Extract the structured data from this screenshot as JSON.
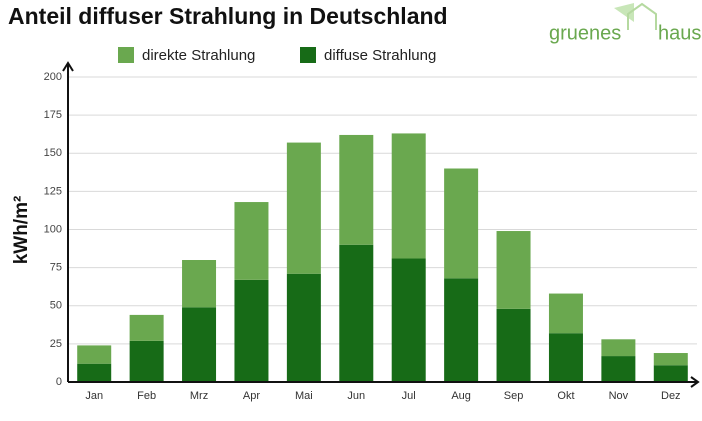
{
  "chart_data": {
    "type": "stacked_bar",
    "title": "Anteil diffuser Strahlung in Deutschland",
    "y_label": "kWh/m²",
    "categories": [
      "Jan",
      "Feb",
      "Mrz",
      "Apr",
      "Mai",
      "Jun",
      "Jul",
      "Aug",
      "Sep",
      "Okt",
      "Nov",
      "Dez"
    ],
    "series": [
      {
        "name": "direkte Strahlung",
        "color": "#6aa84f",
        "values": [
          12,
          17,
          31,
          51,
          86,
          72,
          82,
          72,
          51,
          26,
          11,
          8
        ]
      },
      {
        "name": "diffuse Strahlung",
        "color": "#176b17",
        "values": [
          12,
          27,
          49,
          67,
          71,
          90,
          81,
          68,
          48,
          32,
          17,
          11
        ]
      }
    ],
    "stack_from_bottom": [
      1,
      0
    ],
    "ylim": [
      0,
      200
    ],
    "yticks": [
      0,
      25,
      50,
      75,
      100,
      125,
      150,
      175,
      200
    ],
    "grid": true
  },
  "logo": {
    "left": "gruenes",
    "right": "haus"
  }
}
